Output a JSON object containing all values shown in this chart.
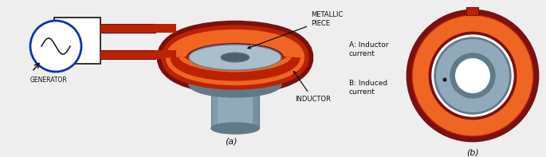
{
  "fig_width": 6.85,
  "fig_height": 1.97,
  "dpi": 100,
  "background": "#eeeeee",
  "label_a": "(a)",
  "label_b": "(b)",
  "generator_label": "GENERATOR",
  "metallic_label": "METALLIC\nPIECE",
  "inductor_label": "INDUCTOR",
  "legend_A": "A: Inductor\ncurrent",
  "legend_B": "B: Induced\ncurrent",
  "colors": {
    "red_dark": "#7A1010",
    "orange_red": "#BB2200",
    "orange": "#DD4400",
    "orange_bright": "#EE6622",
    "blue_circle": "#1133AA",
    "metallic_gray": "#90AABC",
    "metallic_light": "#AABFCC",
    "metallic_dark": "#607A8A",
    "metallic_shadow": "#506070",
    "white": "#FFFFFF",
    "black": "#111111",
    "bg": "#EBEBEB"
  }
}
